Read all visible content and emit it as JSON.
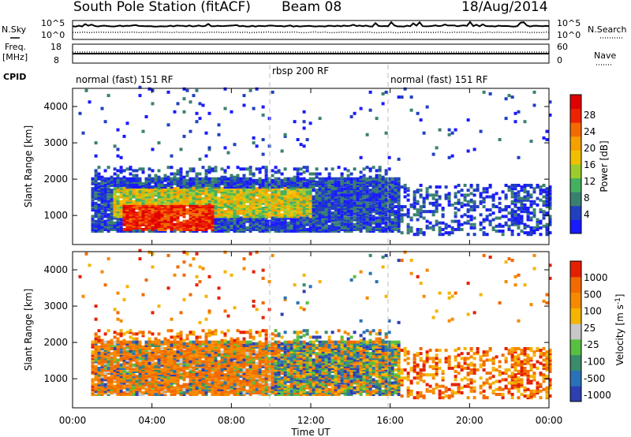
{
  "header": {
    "title": "South Pole Station (fitACF)",
    "beam": "Beam 08",
    "date": "18/Aug/2014"
  },
  "left_labels": {
    "nsky": "N.Sky",
    "nsky_hi": "10^5",
    "nsky_lo": "10^0",
    "freq": "Freq.",
    "freq_unit": "[MHz]",
    "freq_hi": "18",
    "freq_lo": "8",
    "cpid": "CPID"
  },
  "right_labels": {
    "nsearch": "N.Search",
    "nsearch_hi": "10^5",
    "nsearch_lo": "10^0",
    "nave": "Nave",
    "nave_hi": "60",
    "nave_lo": "0"
  },
  "cpid_segments": [
    {
      "label": "normal (fast) 151 RF",
      "start": 0,
      "end": 10
    },
    {
      "label": "rbsp 200 RF",
      "start": 10,
      "end": 16
    },
    {
      "label": "normal (fast) 151 RF",
      "start": 16,
      "end": 24
    }
  ],
  "colorbars": {
    "power": {
      "label": "Power [dB]",
      "ticks": [
        "4",
        "8",
        "12",
        "16",
        "20",
        "24",
        "28"
      ],
      "colors": [
        "#1a1aff",
        "#2040c0",
        "#3a8070",
        "#44b060",
        "#9ccc2c",
        "#f0c000",
        "#f5a000",
        "#f26a00",
        "#ee2200",
        "#e00000"
      ]
    },
    "velocity": {
      "label": "Velocity [m s^-1]",
      "ticks": [
        "1000",
        "500",
        "100",
        "25",
        "-25",
        "-100",
        "-500",
        "-1000"
      ],
      "colors": [
        "#2e3fb0",
        "#2a72b8",
        "#3a8c6a",
        "#58c040",
        "#c8c8c8",
        "#f4b400",
        "#f58a00",
        "#f26a00",
        "#e52000"
      ]
    }
  },
  "chart_data": [
    {
      "type": "heatmap",
      "name": "power",
      "ylabel": "Slant Range [km]",
      "ylim": [
        200,
        4500
      ],
      "yticks": [
        1000,
        2000,
        3000,
        4000
      ],
      "xlim": [
        0,
        24
      ],
      "colorbar_label": "Power [dB]",
      "note": "range-time intensity: main echo band 500-2000 km from 01:00 to 16:00, strongest (>24 dB) near 600-1200 km around 03:00-06:00; weak sparse echoes after 16:00"
    },
    {
      "type": "heatmap",
      "name": "velocity",
      "ylabel": "Slant Range [km]",
      "ylim": [
        200,
        4500
      ],
      "yticks": [
        1000,
        2000,
        3000,
        4000
      ],
      "xlim": [
        0,
        24
      ],
      "xticks": [
        "00:00",
        "04:00",
        "08:00",
        "12:00",
        "16:00",
        "20:00",
        "00:00"
      ],
      "xlabel": "Time UT",
      "colorbar_label": "Velocity [m s^-1]"
    },
    {
      "type": "line",
      "name": "sky-noise",
      "ylim": [
        "10^0",
        "10^5"
      ]
    },
    {
      "type": "line",
      "name": "frequency",
      "ylim": [
        8,
        18
      ],
      "y2lim": [
        0,
        60
      ]
    }
  ]
}
